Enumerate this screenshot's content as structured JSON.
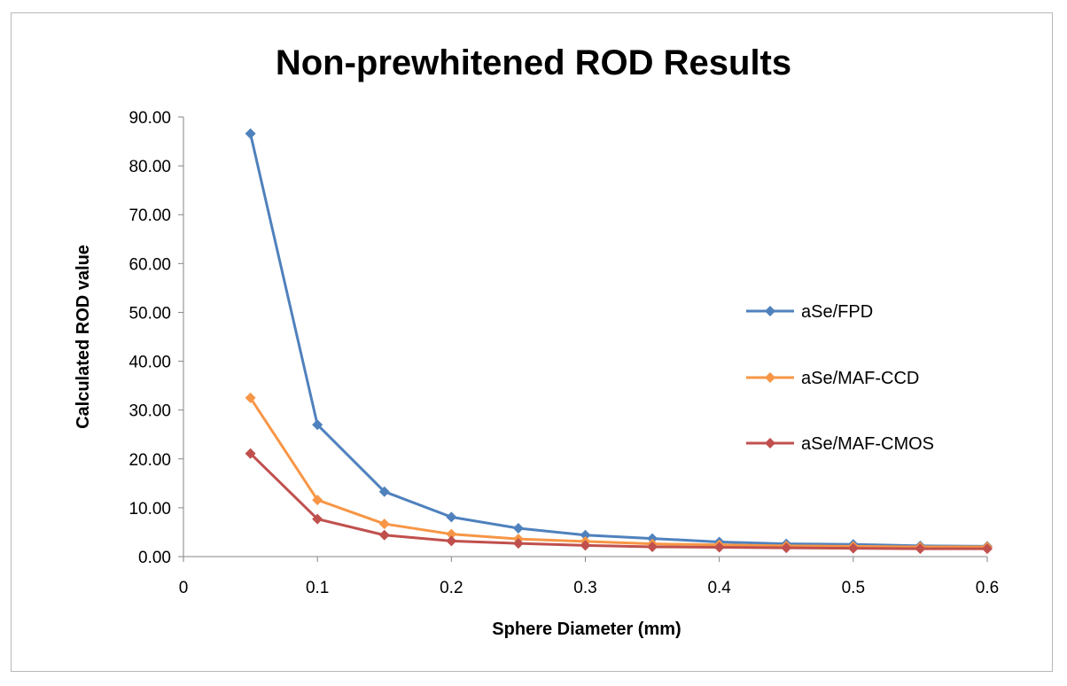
{
  "chart_data": {
    "type": "line",
    "title": "Non-prewhitened  ROD Results",
    "xlabel": "Sphere Diameter (mm)",
    "ylabel": "Calculated ROD value",
    "xlim": [
      0,
      0.6
    ],
    "ylim": [
      0,
      90
    ],
    "x_ticks": [
      "0",
      "0.1",
      "0.2",
      "0.3",
      "0.4",
      "0.5",
      "0.6"
    ],
    "y_ticks": [
      "0.00",
      "10.00",
      "20.00",
      "30.00",
      "40.00",
      "50.00",
      "60.00",
      "70.00",
      "80.00",
      "90.00"
    ],
    "grid": false,
    "legend_position": "right",
    "marker": "diamond",
    "x": [
      0.05,
      0.1,
      0.15,
      0.2,
      0.25,
      0.3,
      0.35,
      0.4,
      0.45,
      0.5,
      0.55,
      0.6
    ],
    "series": [
      {
        "name": "aSe/FPD",
        "color": "#4F81BD",
        "values": [
          86.6,
          27.0,
          13.3,
          8.1,
          5.8,
          4.4,
          3.7,
          3.0,
          2.6,
          2.5,
          2.2,
          2.1
        ]
      },
      {
        "name": "aSe/MAF-CCD",
        "color": "#F79646",
        "values": [
          32.5,
          11.6,
          6.7,
          4.6,
          3.6,
          3.1,
          2.6,
          2.4,
          2.2,
          2.1,
          2.0,
          2.0
        ]
      },
      {
        "name": "aSe/MAF-CMOS",
        "color": "#C0504D",
        "values": [
          21.1,
          7.7,
          4.4,
          3.2,
          2.7,
          2.3,
          2.0,
          1.9,
          1.8,
          1.7,
          1.6,
          1.6
        ]
      }
    ]
  }
}
